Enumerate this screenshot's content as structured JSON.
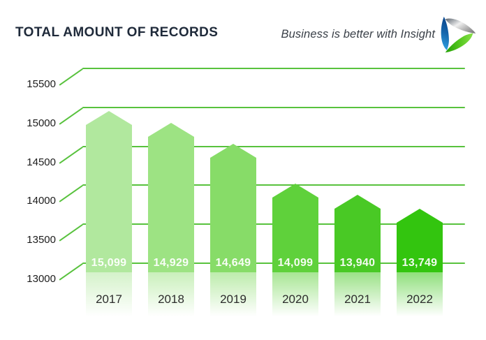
{
  "header": {
    "title": "TOTAL AMOUNT OF RECORDS",
    "tagline": "Business is better with Insight"
  },
  "logo": {
    "name": "insight-logo",
    "colors": {
      "blue_dark": "#0b4a91",
      "blue_light": "#2f9fe0",
      "green_dark": "#2ba50a",
      "green_light": "#8ae24a",
      "gray_dark": "#5d6670",
      "gray_light": "#f0f0f0",
      "gray_tip": "#7f7f7f"
    }
  },
  "colors": {
    "title": "#1f2a3a",
    "tagline": "#3a4048",
    "gridline": "#58c23d",
    "axis_text": "#1c1c1c",
    "year_text": "#2c2c2c",
    "value_text": "#ffffff"
  },
  "chart_data": {
    "type": "bar",
    "title": "TOTAL AMOUNT OF RECORDS",
    "categories": [
      "2017",
      "2018",
      "2019",
      "2020",
      "2021",
      "2022"
    ],
    "values": [
      15099,
      14929,
      14649,
      14099,
      13940,
      13749
    ],
    "value_labels": [
      "15,099",
      "14,929",
      "14,649",
      "14,099",
      "13,940",
      "13,749"
    ],
    "bar_colors": [
      "#b1e89e",
      "#9de383",
      "#87dc68",
      "#5fd13b",
      "#49c925",
      "#33c50f"
    ],
    "y_ticks": [
      15500,
      15000,
      14500,
      14000,
      13500,
      13000
    ],
    "ylim": [
      13000,
      15500
    ],
    "xlabel": "",
    "ylabel": "",
    "grid": true,
    "legend": "none",
    "bar_shape": "pentagon-top",
    "bottom_fade": true,
    "value_label_position": "inside-bottom"
  }
}
